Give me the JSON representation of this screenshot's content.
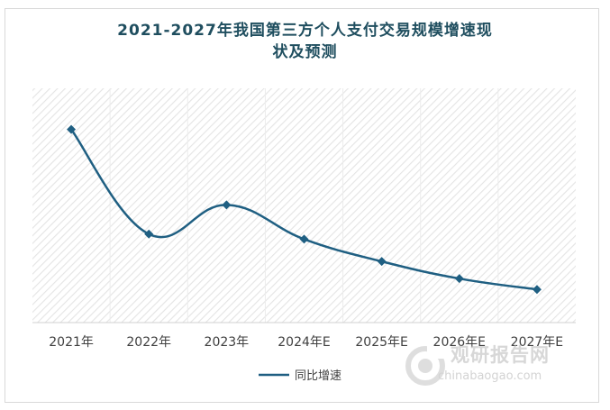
{
  "chart_data": {
    "type": "line",
    "title_lines": [
      "2021-2027年我国第三方个人支付交易规模增速现",
      "状及预测"
    ],
    "categories": [
      "2021年",
      "2022年",
      "2023年",
      "2024年E",
      "2025年E",
      "2026年E",
      "2027年E"
    ],
    "series": [
      {
        "name": "同比增速",
        "color": "#1f5f82",
        "values": [
          31.8,
          13.5,
          18.6,
          12.6,
          8.7,
          5.7,
          3.8
        ]
      }
    ],
    "xlabel": "",
    "ylabel": "",
    "ylim": [
      -2,
      39
    ],
    "grid": "vertical bands, hatched background",
    "legend": "bottom-center"
  },
  "watermark": {
    "brand": "观研报告网",
    "url": "chinabaogao.com"
  }
}
